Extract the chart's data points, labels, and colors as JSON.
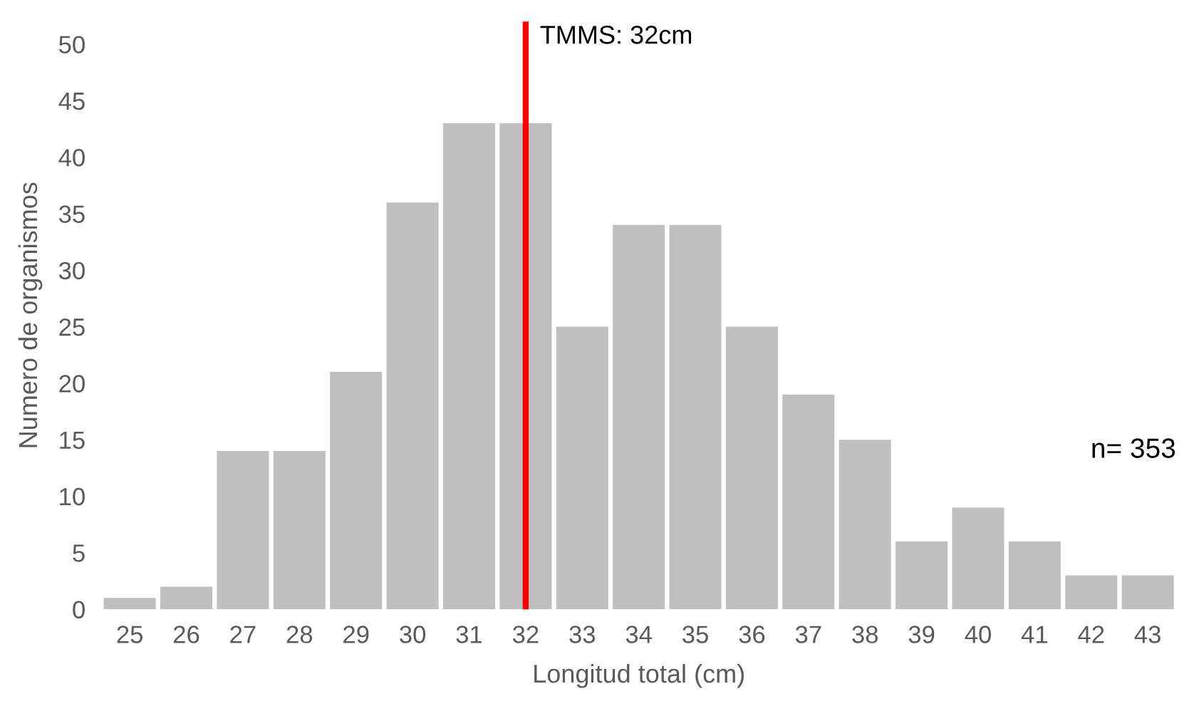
{
  "chart_data": {
    "type": "bar",
    "xlabel": "Longitud total (cm)",
    "ylabel": "Numero de organismos",
    "x": [
      25,
      26,
      27,
      28,
      29,
      30,
      31,
      32,
      33,
      34,
      35,
      36,
      37,
      38,
      39,
      40,
      41,
      42,
      43
    ],
    "values": [
      1,
      2,
      14,
      14,
      21,
      36,
      43,
      43,
      25,
      34,
      34,
      25,
      19,
      15,
      6,
      9,
      6,
      3,
      3
    ],
    "color": "#bfbfbf",
    "xlim": [
      24.5,
      43.5
    ],
    "xticks": [
      25,
      26,
      27,
      28,
      29,
      30,
      31,
      32,
      33,
      34,
      35,
      36,
      37,
      38,
      39,
      40,
      41,
      42,
      43
    ],
    "ylim": [
      0,
      52
    ],
    "yticks": [
      0,
      5,
      10,
      15,
      20,
      25,
      30,
      35,
      40,
      45,
      50
    ],
    "grid": false,
    "legend": false,
    "ref_lines": [
      {
        "axis": "x",
        "value": 32,
        "label": "TMMS: 32cm",
        "color": "#ff0000",
        "line_style": "solid"
      }
    ],
    "annotations": [
      "n= 353"
    ]
  }
}
